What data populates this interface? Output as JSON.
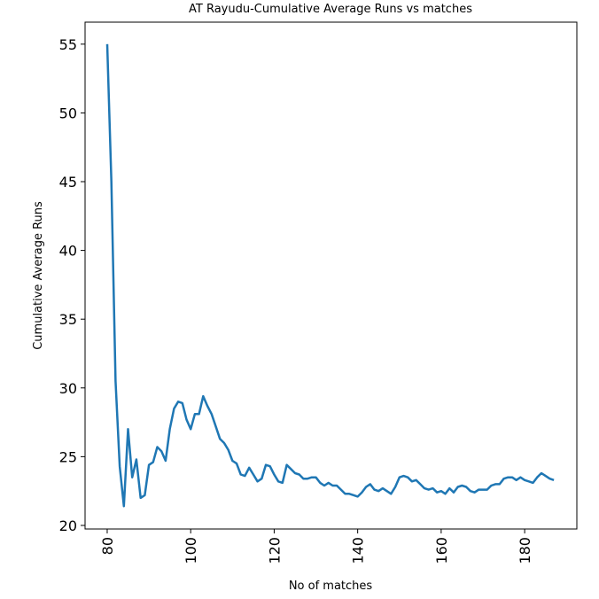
{
  "chart_data": {
    "type": "line",
    "title": "AT Rayudu-Cumulative Average Runs vs matches",
    "xlabel": "No of matches",
    "ylabel": "Cumulative Average Runs",
    "xlim": [
      74.7,
      192.5
    ],
    "ylim": [
      19.74,
      56.6
    ],
    "xticks": [
      80,
      100,
      120,
      140,
      160,
      180
    ],
    "yticks": [
      20,
      25,
      30,
      35,
      40,
      45,
      50,
      55
    ],
    "grid": false,
    "color": "#1f77b4",
    "series": [
      {
        "name": "Cumulative Average Runs",
        "x_start": 80,
        "values": [
          55,
          45,
          30.5,
          24.3,
          21.4,
          27,
          23.5,
          24.8,
          22,
          22.2,
          24.4,
          24.6,
          25.7,
          25.4,
          24.7,
          27,
          28.5,
          29,
          28.9,
          27.7,
          27,
          28.1,
          28.1,
          29.4,
          28.7,
          28.1,
          27.2,
          26.3,
          26,
          25.5,
          24.7,
          24.5,
          23.7,
          23.6,
          24.2,
          23.7,
          23.2,
          23.4,
          24.4,
          24.3,
          23.7,
          23.2,
          23.1,
          24.4,
          24.1,
          23.8,
          23.7,
          23.4,
          23.4,
          23.5,
          23.5,
          23.1,
          22.9,
          23.1,
          22.9,
          22.9,
          22.6,
          22.3,
          22.3,
          22.2,
          22.1,
          22.4,
          22.8,
          23.0,
          22.6,
          22.5,
          22.7,
          22.5,
          22.3,
          22.8,
          23.5,
          23.6,
          23.5,
          23.2,
          23.3,
          23.0,
          22.7,
          22.6,
          22.7,
          22.4,
          22.5,
          22.3,
          22.7,
          22.4,
          22.8,
          22.9,
          22.8,
          22.5,
          22.4,
          22.6,
          22.6,
          22.6,
          22.9,
          23.0,
          23.0,
          23.4,
          23.5,
          23.5,
          23.3,
          23.5,
          23.3,
          23.2,
          23.1,
          23.5,
          23.8,
          23.6,
          23.4,
          23.3
        ]
      }
    ]
  }
}
